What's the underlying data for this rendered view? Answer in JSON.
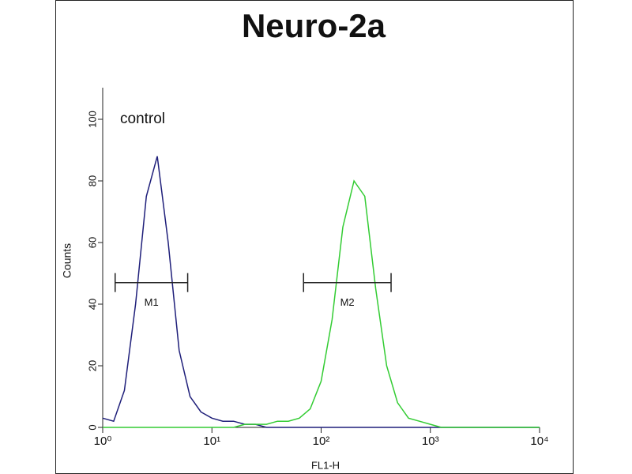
{
  "chart_data": {
    "type": "line",
    "title": "Neuro-2a",
    "xlabel": "FL1-H",
    "ylabel": "Counts",
    "annotation": "control",
    "xscale": "log",
    "xlim": [
      1,
      10000
    ],
    "ylim": [
      0,
      110
    ],
    "xticks": [
      {
        "value": 1,
        "label": "10⁰"
      },
      {
        "value": 10,
        "label": "10¹"
      },
      {
        "value": 100,
        "label": "10²"
      },
      {
        "value": 1000,
        "label": "10³"
      },
      {
        "value": 10000,
        "label": "10⁴"
      }
    ],
    "yticks": [
      0,
      20,
      40,
      60,
      80,
      100
    ],
    "x": [
      1,
      1.26,
      1.58,
      2,
      2.51,
      3.16,
      3.98,
      5.01,
      6.31,
      7.94,
      10,
      12.6,
      15.8,
      20,
      25.1,
      31.6,
      39.8,
      50.1,
      63.1,
      79.4,
      100,
      126,
      158,
      200,
      251,
      316,
      398,
      501,
      631,
      794,
      1000,
      1260,
      1580,
      2000,
      2510,
      3160,
      3980,
      5010,
      6310,
      7940,
      10000
    ],
    "series": [
      {
        "color": "#1f1f7a",
        "values": [
          3,
          2,
          12,
          40,
          75,
          88,
          60,
          25,
          10,
          5,
          3,
          2,
          2,
          1,
          1,
          0,
          0,
          0,
          0,
          0,
          0,
          0,
          0,
          0,
          0,
          0,
          0,
          0,
          0,
          0,
          0,
          0,
          0,
          0,
          0,
          0,
          0,
          0,
          0,
          0,
          0
        ]
      },
      {
        "color": "#33cc33",
        "values": [
          0,
          0,
          0,
          0,
          0,
          0,
          0,
          0,
          0,
          0,
          0,
          0,
          0,
          1,
          1,
          1,
          2,
          2,
          3,
          6,
          15,
          35,
          65,
          80,
          75,
          45,
          20,
          8,
          3,
          2,
          1,
          0,
          0,
          0,
          0,
          0,
          0,
          0,
          0,
          0,
          0
        ]
      }
    ],
    "markers": [
      {
        "label": "M1",
        "range": [
          1.3,
          6
        ],
        "y": 47
      },
      {
        "label": "M2",
        "range": [
          69,
          437
        ],
        "y": 47
      }
    ]
  }
}
